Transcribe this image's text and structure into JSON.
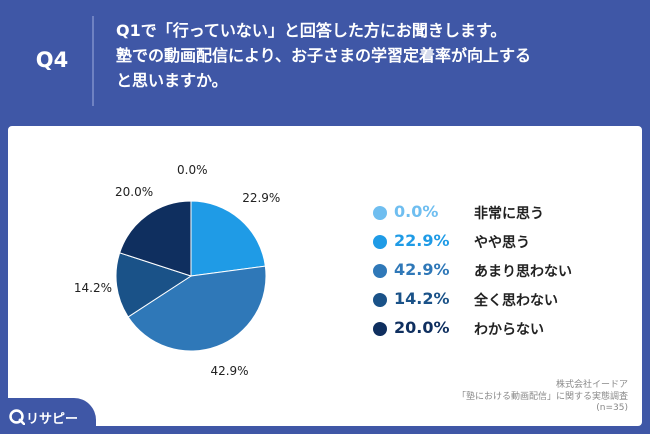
{
  "header": {
    "qnum": "Q4",
    "question_lines": [
      "Q1で「行っていない」と回答した方にお聞きします。",
      "塾での動画配信により、お子さまの学習定着率が向上する",
      "と思いますか。"
    ]
  },
  "chart_data": {
    "type": "pie",
    "categories": [
      "非常に思う",
      "やや思う",
      "あまり思わない",
      "全く思わない",
      "わからない"
    ],
    "values": [
      0.0,
      22.9,
      42.9,
      14.2,
      20.0
    ],
    "value_labels": [
      "0.0%",
      "22.9%",
      "42.9%",
      "14.2%",
      "20.0%"
    ],
    "colors": [
      "#6fbef0",
      "#1f9be6",
      "#2f78b8",
      "#1a5288",
      "#0f2f5f"
    ],
    "start_angle": "12 o'clock, clockwise",
    "legend_position": "right"
  },
  "source": {
    "company": "株式会社イードア",
    "survey": "「塾における動画配信」に関する実態調査",
    "n": "(n=35)"
  },
  "logo": {
    "text": "リサピー"
  },
  "icons": {
    "logo": "risapi-logo-icon"
  }
}
